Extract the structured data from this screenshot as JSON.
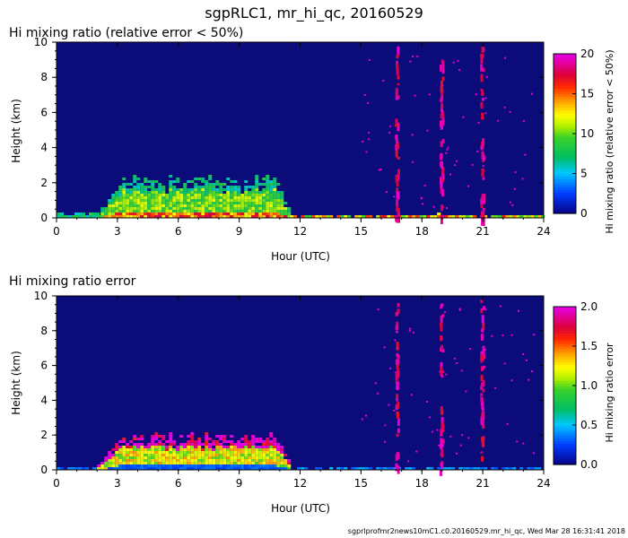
{
  "figure": {
    "title": "sgpRLC1, mr_hi_qc, 20160529",
    "footer": "sgprlprofmr2news10mC1.c0.20160529.mr_hi_qc, Wed Mar 28 16:31:41 2018"
  },
  "chart_data": [
    {
      "type": "heatmap",
      "title": "Hi mixing ratio (relative error < 50%)",
      "xlabel": "Hour (UTC)",
      "ylabel": "Height (km)",
      "xlim": [
        0,
        24
      ],
      "ylim": [
        0,
        10
      ],
      "xticks": [
        0,
        3,
        6,
        9,
        12,
        15,
        18,
        21,
        24
      ],
      "yticks": [
        0,
        2,
        4,
        6,
        8,
        10
      ],
      "colorbar": {
        "label": "Hi mixing ratio (relative error < 50%)",
        "range": [
          0,
          20
        ],
        "ticks": [
          0,
          5,
          10,
          15,
          20
        ],
        "tick_labels": [
          "0",
          "5",
          "10",
          "15",
          "20"
        ]
      },
      "background_color": "#0b0b7a",
      "features": [
        {
          "type": "boundary_layer",
          "x_range": [
            0,
            2
          ],
          "y_top": 0.3,
          "value": 7
        },
        {
          "type": "boundary_layer",
          "x_range": [
            2,
            11.5
          ],
          "y_top": 2.3,
          "value_low": 15,
          "value_mid": 10,
          "value_high": 7
        },
        {
          "type": "surface_layer",
          "x_range": [
            11.5,
            24
          ],
          "y_top": 0.2,
          "value": 13
        },
        {
          "type": "noise_columns",
          "x": [
            16.8,
            19.0,
            21.0
          ],
          "value": 20
        }
      ]
    },
    {
      "type": "heatmap",
      "title": "Hi mixing ratio error",
      "xlabel": "Hour (UTC)",
      "ylabel": "Height (km)",
      "xlim": [
        0,
        24
      ],
      "ylim": [
        0,
        10
      ],
      "xticks": [
        0,
        3,
        6,
        9,
        12,
        15,
        18,
        21,
        24
      ],
      "yticks": [
        0,
        2,
        4,
        6,
        8,
        10
      ],
      "colorbar": {
        "label": "Hi mixing ratio error",
        "range": [
          0,
          2
        ],
        "ticks": [
          0,
          0.5,
          1,
          1.5,
          2
        ],
        "tick_labels": [
          "0.0",
          "0.5",
          "1.0",
          "1.5",
          "2.0"
        ]
      },
      "background_color": "#0b0b7a",
      "features": [
        {
          "type": "boundary_layer",
          "x_range": [
            0,
            2
          ],
          "y_top": 0.2,
          "value": 0.3
        },
        {
          "type": "boundary_layer",
          "x_range": [
            2,
            11.5
          ],
          "y_top": 2.0,
          "value_low": 0.3,
          "value_mid": 1.2,
          "value_high": 2.0
        },
        {
          "type": "surface_layer",
          "x_range": [
            11.5,
            24
          ],
          "y_top": 0.15,
          "value": 0.4
        },
        {
          "type": "noise_columns",
          "x": [
            16.8,
            19.0,
            21.0
          ],
          "value": 2.0
        }
      ]
    }
  ]
}
